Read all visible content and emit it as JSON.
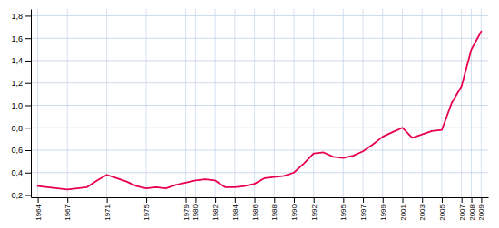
{
  "chart_data": {
    "type": "line",
    "x": [
      1964,
      1965,
      1966,
      1967,
      1968,
      1969,
      1970,
      1971,
      1972,
      1973,
      1974,
      1975,
      1976,
      1977,
      1978,
      1979,
      1980,
      1981,
      1982,
      1983,
      1984,
      1985,
      1986,
      1987,
      1988,
      1989,
      1990,
      1991,
      1992,
      1993,
      1994,
      1995,
      1996,
      1997,
      1998,
      1999,
      2000,
      2001,
      2002,
      2003,
      2004,
      2005,
      2006,
      2007,
      2008,
      2009
    ],
    "values": [
      0.28,
      0.27,
      0.26,
      0.25,
      0.26,
      0.27,
      0.33,
      0.38,
      0.35,
      0.32,
      0.28,
      0.26,
      0.27,
      0.26,
      0.29,
      0.31,
      0.33,
      0.34,
      0.33,
      0.27,
      0.27,
      0.28,
      0.3,
      0.35,
      0.36,
      0.37,
      0.4,
      0.48,
      0.57,
      0.58,
      0.54,
      0.53,
      0.55,
      0.59,
      0.65,
      0.72,
      0.76,
      0.8,
      0.71,
      0.74,
      0.77,
      0.78,
      1.02,
      1.17,
      1.5,
      1.66
    ],
    "color": "#e8004e",
    "xlim": [
      1963.3,
      2009.7
    ],
    "xticks": [
      1964,
      1967,
      1971,
      1975,
      1979,
      1980,
      1982,
      1984,
      1986,
      1988,
      1990,
      1992,
      1995,
      1997,
      1999,
      2001,
      2003,
      2005,
      2007,
      2008,
      2009
    ],
    "ylim": [
      0.18,
      1.86
    ],
    "yticks": [
      {
        "value": 0.2,
        "label": "0,2"
      },
      {
        "value": 0.4,
        "label": "0,4"
      },
      {
        "value": 0.6,
        "label": "0,6"
      },
      {
        "value": 0.8,
        "label": "0,8"
      },
      {
        "value": 1.0,
        "label": "1,0"
      },
      {
        "value": 1.2,
        "label": "1,2"
      },
      {
        "value": 1.4,
        "label": "1,4"
      },
      {
        "value": 1.6,
        "label": "1,6"
      },
      {
        "value": 1.8,
        "label": "1,8"
      }
    ],
    "grid": true
  }
}
